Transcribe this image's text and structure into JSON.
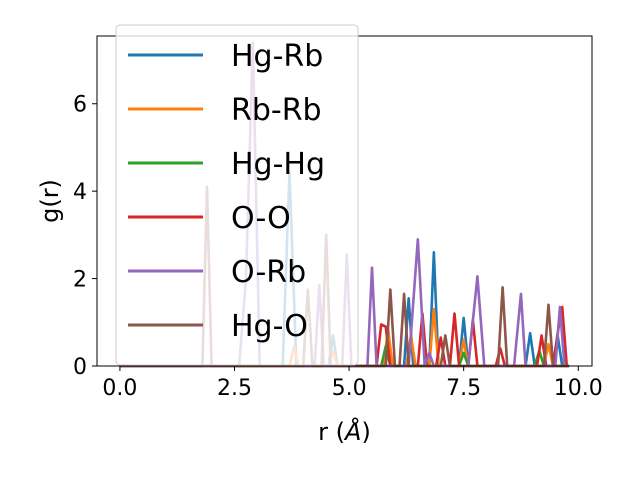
{
  "chart_data": {
    "type": "line",
    "xlabel": "r (",
    "xlabel_unit": "Å",
    "xlabel_close": ")",
    "ylabel": "g(r)",
    "xlim": [
      -0.5,
      10.3
    ],
    "ylim": [
      0,
      7.55
    ],
    "xticks": [
      0.0,
      2.5,
      5.0,
      7.5,
      10.0
    ],
    "xtick_labels": [
      "0.0",
      "2.5",
      "5.0",
      "7.5",
      "10.0"
    ],
    "yticks": [
      0,
      2,
      4,
      6
    ],
    "ytick_labels": [
      "0",
      "2",
      "4",
      "6"
    ],
    "grid": false,
    "legend_position": "top-left",
    "series": [
      {
        "name": "Hg-Rb",
        "color": "#1f77b4",
        "points": [
          [
            0,
            0
          ],
          [
            3.55,
            0
          ],
          [
            3.7,
            4.45
          ],
          [
            3.85,
            0
          ],
          [
            4.55,
            0
          ],
          [
            4.65,
            0.7
          ],
          [
            4.75,
            0
          ],
          [
            6.2,
            0
          ],
          [
            6.3,
            1.55
          ],
          [
            6.4,
            0
          ],
          [
            6.75,
            0
          ],
          [
            6.85,
            2.6
          ],
          [
            6.95,
            0
          ],
          [
            7.4,
            0
          ],
          [
            7.5,
            1.1
          ],
          [
            7.6,
            0
          ],
          [
            8.85,
            0
          ],
          [
            8.95,
            0.75
          ],
          [
            9.05,
            0
          ],
          [
            9.45,
            0
          ],
          [
            9.55,
            0.7
          ],
          [
            9.65,
            0
          ],
          [
            9.8,
            0
          ]
        ]
      },
      {
        "name": "Rb-Rb",
        "color": "#ff7f0e",
        "points": [
          [
            0,
            0
          ],
          [
            3.7,
            0
          ],
          [
            3.8,
            0.45
          ],
          [
            3.9,
            0
          ],
          [
            4.55,
            0
          ],
          [
            4.65,
            0.35
          ],
          [
            4.75,
            0
          ],
          [
            5.75,
            0
          ],
          [
            5.85,
            0.85
          ],
          [
            5.95,
            0
          ],
          [
            6.25,
            0
          ],
          [
            6.35,
            0.7
          ],
          [
            6.45,
            0
          ],
          [
            6.75,
            0
          ],
          [
            6.85,
            1.3
          ],
          [
            6.95,
            0
          ],
          [
            7.4,
            0
          ],
          [
            7.5,
            0.6
          ],
          [
            7.6,
            0
          ],
          [
            9.25,
            0
          ],
          [
            9.35,
            0.5
          ],
          [
            9.45,
            0
          ],
          [
            9.8,
            0
          ]
        ]
      },
      {
        "name": "Hg-Hg",
        "color": "#2ca02c",
        "points": [
          [
            0,
            0
          ],
          [
            5.7,
            0
          ],
          [
            5.8,
            0.45
          ],
          [
            5.9,
            0
          ],
          [
            7.4,
            0
          ],
          [
            7.5,
            0.3
          ],
          [
            7.6,
            0
          ],
          [
            9.05,
            0
          ],
          [
            9.15,
            0.35
          ],
          [
            9.25,
            0
          ],
          [
            9.8,
            0
          ]
        ]
      },
      {
        "name": "O-O",
        "color": "#d62728",
        "points": [
          [
            0,
            0
          ],
          [
            5.6,
            0
          ],
          [
            5.7,
            0.95
          ],
          [
            5.8,
            0.9
          ],
          [
            5.9,
            0
          ],
          [
            6.5,
            0
          ],
          [
            6.6,
            1.2
          ],
          [
            6.7,
            0
          ],
          [
            6.9,
            0
          ],
          [
            7.0,
            0.65
          ],
          [
            7.1,
            0
          ],
          [
            7.2,
            0
          ],
          [
            7.3,
            1.2
          ],
          [
            7.4,
            0
          ],
          [
            7.6,
            0
          ],
          [
            7.7,
            1.05
          ],
          [
            7.8,
            0
          ],
          [
            8.2,
            0
          ],
          [
            8.3,
            0.4
          ],
          [
            8.4,
            0
          ],
          [
            9.1,
            0
          ],
          [
            9.2,
            0.7
          ],
          [
            9.3,
            0
          ],
          [
            9.45,
            0
          ],
          [
            9.55,
            0.75
          ],
          [
            9.65,
            1.35
          ],
          [
            9.75,
            0
          ],
          [
            9.8,
            0
          ]
        ]
      },
      {
        "name": "O-Rb",
        "color": "#9467bd",
        "points": [
          [
            0,
            0
          ],
          [
            2.6,
            0
          ],
          [
            2.75,
            2.0
          ],
          [
            2.9,
            7.4
          ],
          [
            3.05,
            0
          ],
          [
            4.25,
            0
          ],
          [
            4.35,
            1.85
          ],
          [
            4.45,
            0
          ],
          [
            4.85,
            0
          ],
          [
            4.95,
            2.55
          ],
          [
            5.05,
            0
          ],
          [
            5.4,
            0
          ],
          [
            5.5,
            2.25
          ],
          [
            5.6,
            0
          ],
          [
            6.3,
            0
          ],
          [
            6.5,
            2.9
          ],
          [
            6.65,
            0
          ],
          [
            6.75,
            0.3
          ],
          [
            6.85,
            0
          ],
          [
            7.6,
            0
          ],
          [
            7.8,
            2.05
          ],
          [
            7.95,
            0
          ],
          [
            8.6,
            0
          ],
          [
            8.75,
            1.65
          ],
          [
            8.85,
            0
          ],
          [
            9.5,
            0
          ],
          [
            9.6,
            1.35
          ],
          [
            9.7,
            0
          ],
          [
            9.8,
            0
          ]
        ]
      },
      {
        "name": "Hg-O",
        "color": "#8c564b",
        "points": [
          [
            0,
            0
          ],
          [
            1.8,
            0
          ],
          [
            1.9,
            4.1
          ],
          [
            2.0,
            0
          ],
          [
            4.0,
            0
          ],
          [
            4.1,
            1.75
          ],
          [
            4.2,
            0
          ],
          [
            4.4,
            0
          ],
          [
            4.5,
            3.0
          ],
          [
            4.6,
            0
          ],
          [
            5.8,
            0
          ],
          [
            5.9,
            1.75
          ],
          [
            6.0,
            0
          ],
          [
            6.1,
            0
          ],
          [
            6.2,
            1.65
          ],
          [
            6.3,
            0
          ],
          [
            7.0,
            0
          ],
          [
            7.1,
            0.7
          ],
          [
            7.2,
            0
          ],
          [
            8.25,
            0
          ],
          [
            8.35,
            1.8
          ],
          [
            8.45,
            0
          ],
          [
            9.25,
            0
          ],
          [
            9.35,
            1.4
          ],
          [
            9.45,
            0
          ],
          [
            9.8,
            0
          ]
        ]
      }
    ]
  }
}
